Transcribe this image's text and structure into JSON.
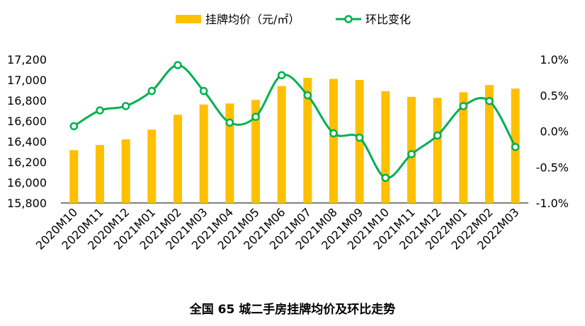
{
  "chart_data": {
    "type": "bar",
    "title": "全国 65 城二手房挂牌均价及环比走势",
    "categories": [
      "2020M10",
      "2020M11",
      "2020M12",
      "2021M01",
      "2021M02",
      "2021M03",
      "2021M04",
      "2021M05",
      "2021M06",
      "2021M07",
      "2021M08",
      "2021M09",
      "2021M10",
      "2021M11",
      "2021M12",
      "2022M01",
      "2022M02",
      "2022M03"
    ],
    "series": [
      {
        "name": "挂牌均价（元/㎡）",
        "type": "bar",
        "axis": "left",
        "color": "#FFC000",
        "values": [
          16315,
          16365,
          16420,
          16515,
          16660,
          16760,
          16770,
          16805,
          16940,
          17020,
          17010,
          17000,
          16890,
          16835,
          16825,
          16880,
          16950,
          16915
        ]
      },
      {
        "name": "环比变化",
        "type": "line",
        "axis": "right",
        "color": "#00B050",
        "unit": "%",
        "values": [
          0.07,
          0.29,
          0.35,
          0.56,
          0.92,
          0.56,
          0.12,
          0.2,
          0.78,
          0.5,
          -0.03,
          -0.09,
          -0.65,
          -0.32,
          -0.06,
          0.35,
          0.42,
          -0.22
        ]
      }
    ],
    "ylim_left": [
      15800,
      17200
    ],
    "yticks_left": [
      "15,800",
      "16,000",
      "16,200",
      "16,400",
      "16,600",
      "16,800",
      "17,000",
      "17,200"
    ],
    "ylim_right": [
      -1.0,
      1.0
    ],
    "yticks_right": [
      "-1.0%",
      "-0.5%",
      "0.0%",
      "0.5%",
      "1.0%"
    ],
    "grid": false,
    "legend_position": "top"
  }
}
